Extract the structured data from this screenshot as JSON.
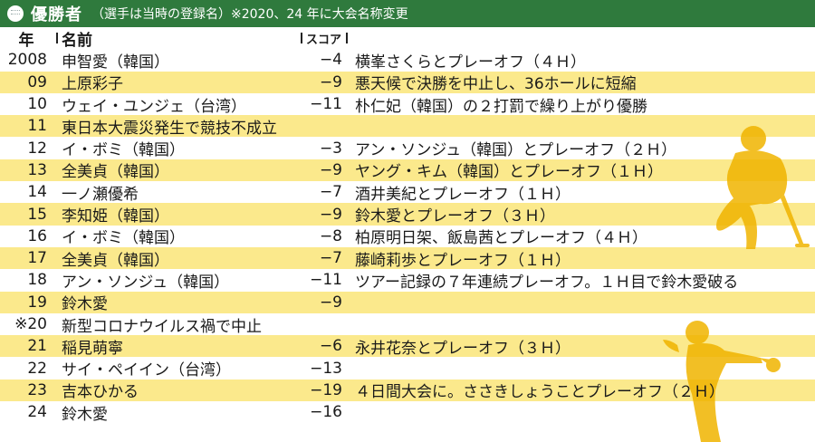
{
  "header": {
    "title": "優勝者",
    "note": "（選手は当時の登録名）※2020、24 年に大会名称変更"
  },
  "columns": {
    "year": "年",
    "name": "名前",
    "score": "スコア"
  },
  "rows": [
    {
      "year": "2008",
      "name": "申智愛（韓国）",
      "score": "−4",
      "note": "横峯さくらとプレーオフ（４Ｈ）"
    },
    {
      "year": "09",
      "name": "上原彩子",
      "score": "−9",
      "note": "悪天候で決勝を中止し、36ホールに短縮"
    },
    {
      "year": "10",
      "name": "ウェイ・ユンジェ（台湾）",
      "score": "−11",
      "note": "朴仁妃（韓国）の２打罰で繰り上がり優勝"
    },
    {
      "year": "11",
      "name": "東日本大震災発生で競技不成立",
      "score": "",
      "note": ""
    },
    {
      "year": "12",
      "name": "イ・ボミ（韓国）",
      "score": "−3",
      "note": "アン・ソンジュ（韓国）とプレーオフ（２Ｈ）"
    },
    {
      "year": "13",
      "name": "全美貞（韓国）",
      "score": "−9",
      "note": "ヤング・キム（韓国）とプレーオフ（１Ｈ）"
    },
    {
      "year": "14",
      "name": "一ノ瀬優希",
      "score": "−7",
      "note": "酒井美紀とプレーオフ（１Ｈ）"
    },
    {
      "year": "15",
      "name": "李知姫（韓国）",
      "score": "−9",
      "note": "鈴木愛とプレーオフ（３Ｈ）"
    },
    {
      "year": "16",
      "name": "イ・ボミ（韓国）",
      "score": "−8",
      "note": "柏原明日架、飯島茜とプレーオフ（４Ｈ）"
    },
    {
      "year": "17",
      "name": "全美貞（韓国）",
      "score": "−7",
      "note": "藤崎莉歩とプレーオフ（１Ｈ）"
    },
    {
      "year": "18",
      "name": "アン・ソンジュ（韓国）",
      "score": "−11",
      "note": "ツアー記録の７年連続プレーオフ。１Ｈ目で鈴木愛破る"
    },
    {
      "year": "19",
      "name": "鈴木愛",
      "score": "−9",
      "note": ""
    },
    {
      "year": "※20",
      "name": "新型コロナウイルス禍で中止",
      "score": "",
      "note": ""
    },
    {
      "year": "21",
      "name": "稲見萌寧",
      "score": "−6",
      "note": "永井花奈とプレーオフ（３Ｈ）"
    },
    {
      "year": "22",
      "name": "サイ・ペイイン（台湾）",
      "score": "−13",
      "note": ""
    },
    {
      "year": "23",
      "name": "吉本ひかる",
      "score": "−19",
      "note": "４日間大会に。ささきしょうことプレーオフ（２Ｈ）"
    },
    {
      "year": "24",
      "name": "鈴木愛",
      "score": "−16",
      "note": ""
    }
  ],
  "colors": {
    "header_bg": "#2f7a3d",
    "stripe": "#fbe98c",
    "silhouette": "#f0b400"
  },
  "icons": [
    "golf-ball-icon",
    "golfer-putting-silhouette",
    "golfer-swing-silhouette"
  ]
}
